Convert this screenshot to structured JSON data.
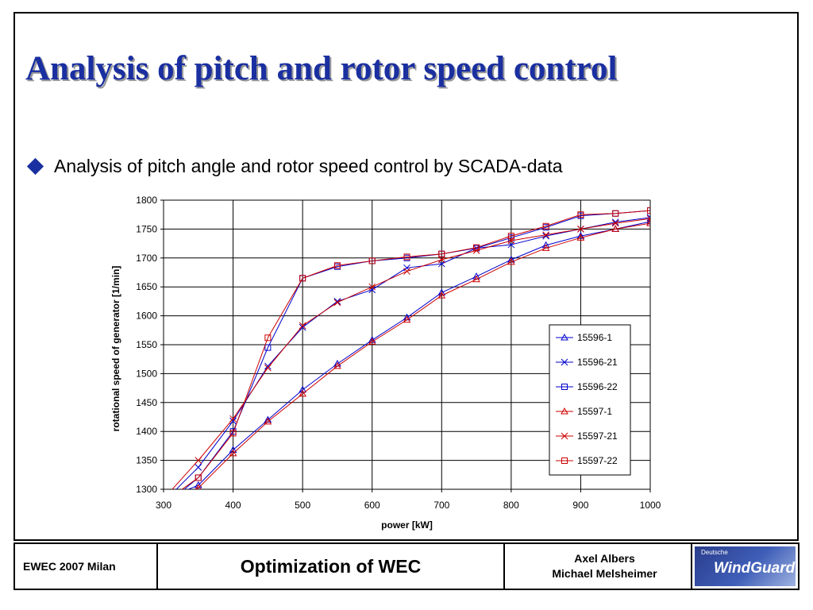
{
  "slide": {
    "title": "Analysis of pitch and rotor speed control",
    "bullet": "Analysis of pitch angle and rotor speed control by SCADA-data"
  },
  "footer": {
    "event": "EWEC 2007 Milan",
    "topic": "Optimization of WEC",
    "authors": [
      "Axel Albers",
      "Michael Melsheimer"
    ],
    "logo_small": "Deutsche",
    "logo_main": "WindGuard"
  },
  "chart_data": {
    "type": "line",
    "xlabel": "power [kW]",
    "ylabel": "rotational speed of generator [1/min]",
    "xlim": [
      300,
      1000
    ],
    "ylim": [
      1300,
      1800
    ],
    "x_ticks": [
      300,
      400,
      500,
      600,
      700,
      800,
      900,
      1000
    ],
    "y_ticks": [
      1300,
      1350,
      1400,
      1450,
      1500,
      1550,
      1600,
      1650,
      1700,
      1750,
      1800
    ],
    "grid": true,
    "legend_position": "inside-right",
    "series": [
      {
        "name": "15596-1",
        "color": "#0000cc",
        "marker": "triangle",
        "x": [
          305,
          350,
          400,
          450,
          500,
          550,
          600,
          650,
          700,
          750,
          800,
          850,
          900,
          950,
          1000
        ],
        "y": [
          1285,
          1307,
          1368,
          1420,
          1472,
          1517,
          1558,
          1597,
          1640,
          1668,
          1697,
          1722,
          1738,
          1750,
          1763
        ]
      },
      {
        "name": "15596-21",
        "color": "#0000cc",
        "marker": "x",
        "x": [
          310,
          350,
          400,
          450,
          500,
          550,
          600,
          650,
          700,
          750,
          800,
          850,
          900,
          950,
          1000
        ],
        "y": [
          1290,
          1338,
          1418,
          1513,
          1580,
          1625,
          1645,
          1683,
          1690,
          1717,
          1723,
          1738,
          1750,
          1762,
          1770
        ]
      },
      {
        "name": "15596-22",
        "color": "#0000cc",
        "marker": "square",
        "x": [
          320,
          350,
          400,
          450,
          500,
          550,
          600,
          650,
          700,
          750,
          800,
          850,
          900,
          950,
          1000
        ],
        "y": [
          1290,
          1320,
          1400,
          1545,
          1665,
          1685,
          1695,
          1700,
          1707,
          1717,
          1735,
          1753,
          1773,
          1777,
          1782
        ]
      },
      {
        "name": "15597-1",
        "color": "#cc0000",
        "marker": "triangle",
        "x": [
          310,
          350,
          400,
          450,
          500,
          550,
          600,
          650,
          700,
          750,
          800,
          850,
          900,
          950,
          1000
        ],
        "y": [
          1280,
          1302,
          1362,
          1417,
          1465,
          1513,
          1555,
          1593,
          1635,
          1663,
          1693,
          1717,
          1735,
          1750,
          1760
        ]
      },
      {
        "name": "15597-21",
        "color": "#cc0000",
        "marker": "x",
        "x": [
          305,
          350,
          400,
          450,
          500,
          550,
          600,
          650,
          700,
          750,
          800,
          850,
          900,
          950,
          1000
        ],
        "y": [
          1290,
          1350,
          1422,
          1510,
          1583,
          1623,
          1650,
          1677,
          1697,
          1713,
          1730,
          1740,
          1750,
          1760,
          1768
        ]
      },
      {
        "name": "15597-22",
        "color": "#cc0000",
        "marker": "square",
        "x": [
          315,
          350,
          400,
          450,
          500,
          550,
          600,
          650,
          700,
          750,
          800,
          850,
          900,
          950,
          1000
        ],
        "y": [
          1290,
          1320,
          1397,
          1562,
          1665,
          1687,
          1695,
          1702,
          1707,
          1718,
          1738,
          1755,
          1775,
          1777,
          1782
        ]
      }
    ]
  }
}
